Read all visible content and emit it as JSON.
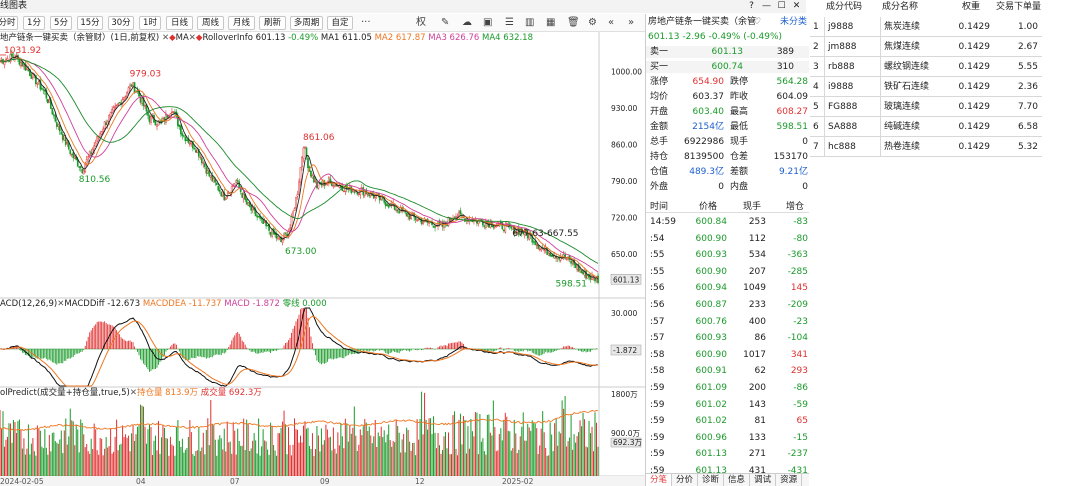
{
  "window": {
    "title": "线图表",
    "buttons": [
      "?",
      "—",
      "☐",
      "✕"
    ]
  },
  "toolbar": {
    "periods": [
      "分时",
      "1分",
      "5分",
      "15分",
      "30分",
      "1时",
      "日线",
      "周线",
      "月线",
      "刷新",
      "多周期",
      "自定"
    ],
    "more": "···",
    "right_label": "权"
  },
  "legend": {
    "main_name": "地产链条一键买卖（余管财）(1日,前复权)",
    "ma_marker": "MA",
    "rollover_marker": "RolloverInfo",
    "last_value": "601.13",
    "last_change": "-0.49%",
    "ma1": "MA1 611.05",
    "ma2": "MA2 617.87",
    "ma3": "MA3 626.76",
    "ma4": "MA4 632.18",
    "macd_name": "ACD(12,26,9)",
    "macd_diff": "MACDDiff -12.673",
    "macd_dea": "MACDDEA -11.737",
    "macd_val": "MACD -1.872",
    "macd_zero": "零线 0.000",
    "vol_name": "olPredict(成交量+持仓量,true,5)",
    "vol_hold": "持仓量 813.9万",
    "vol_amt": "成交量 692.3万"
  },
  "chart_data": {
    "type": "candlestick",
    "price_axis": [
      "1000.00",
      "930.00",
      "860.00",
      "790.00",
      "720.00",
      "650.00"
    ],
    "price_range": [
      569,
      1053
    ],
    "macd_axis": [
      "30.000",
      "-1.872"
    ],
    "vol_axis": [
      "1800万",
      "900.0万",
      "692.3万"
    ],
    "current_price_tag": "601.13",
    "date_labels": [
      "2024-02-05",
      "04",
      "07",
      "09",
      "12",
      "2025-02"
    ],
    "annotations": [
      {
        "text": "1031.92",
        "value": 1031.92
      },
      {
        "text": "979.03",
        "value": 979.03
      },
      {
        "text": "810.56",
        "value": 810.56
      },
      {
        "text": "861.06",
        "value": 861.06
      },
      {
        "text": "673.00",
        "value": 673.0
      },
      {
        "text": "677.63-667.55",
        "value": 672.6
      },
      {
        "text": "598.51",
        "value": 598.51
      }
    ],
    "price_keypoints": [
      [
        0,
        1020
      ],
      [
        10,
        1030
      ],
      [
        18,
        1005
      ],
      [
        30,
        960
      ],
      [
        38,
        900
      ],
      [
        48,
        840
      ],
      [
        55,
        812
      ],
      [
        60,
        840
      ],
      [
        70,
        900
      ],
      [
        80,
        940
      ],
      [
        88,
        975
      ],
      [
        92,
        960
      ],
      [
        100,
        910
      ],
      [
        108,
        900
      ],
      [
        115,
        930
      ],
      [
        122,
        880
      ],
      [
        132,
        850
      ],
      [
        140,
        800
      ],
      [
        150,
        760
      ],
      [
        158,
        790
      ],
      [
        165,
        745
      ],
      [
        175,
        710
      ],
      [
        182,
        690
      ],
      [
        188,
        673
      ],
      [
        194,
        700
      ],
      [
        199,
        770
      ],
      [
        203,
        861
      ],
      [
        207,
        810
      ],
      [
        212,
        780
      ],
      [
        220,
        790
      ],
      [
        232,
        775
      ],
      [
        244,
        770
      ],
      [
        256,
        752
      ],
      [
        266,
        735
      ],
      [
        276,
        720
      ],
      [
        286,
        710
      ],
      [
        296,
        703
      ],
      [
        304,
        725
      ],
      [
        310,
        720
      ],
      [
        318,
        714
      ],
      [
        326,
        710
      ],
      [
        334,
        705
      ],
      [
        342,
        698
      ],
      [
        350,
        692
      ],
      [
        356,
        680
      ],
      [
        362,
        660
      ],
      [
        370,
        650
      ],
      [
        378,
        642
      ],
      [
        384,
        630
      ],
      [
        390,
        612
      ],
      [
        396,
        604
      ],
      [
        400,
        601
      ]
    ]
  },
  "quote": {
    "title": "房地产链条一键买卖（余管",
    "tag": "未分类",
    "price_line": "601.13  -2.96  -0.49%  (-0.49%)",
    "ask_label": "卖一",
    "ask_price": "601.13",
    "ask_vol": "389",
    "bid_label": "买一",
    "bid_price": "600.74",
    "bid_vol": "310",
    "rows": [
      {
        "l1": "涨停",
        "v1": "654.90",
        "c1": "red",
        "l2": "跌停",
        "v2": "564.28",
        "c2": "green"
      },
      {
        "l1": "均价",
        "v1": "603.37",
        "c1": "normal",
        "l2": "昨收",
        "v2": "604.09",
        "c2": "normal"
      },
      {
        "l1": "开盘",
        "v1": "603.40",
        "c1": "green",
        "l2": "最高",
        "v2": "608.27",
        "c2": "red"
      },
      {
        "l1": "金额",
        "v1": "2154亿",
        "c1": "blue",
        "l2": "最低",
        "v2": "598.51",
        "c2": "green"
      },
      {
        "l1": "总手",
        "v1": "6922986",
        "c1": "normal",
        "l2": "现手",
        "v2": "0",
        "c2": "normal"
      },
      {
        "l1": "持仓",
        "v1": "8139500",
        "c1": "normal",
        "l2": "仓差",
        "v2": "153170",
        "c2": "normal"
      },
      {
        "l1": "仓值",
        "v1": "489.3亿",
        "c1": "blue",
        "l2": "差额",
        "v2": "9.21亿",
        "c2": "blue"
      },
      {
        "l1": "外盘",
        "v1": "0",
        "c1": "normal",
        "l2": "内盘",
        "v2": "0",
        "c2": "normal"
      }
    ],
    "tick_header": [
      "时间",
      "价格",
      "现手",
      "增仓"
    ],
    "ticks": [
      {
        "t": "14:59",
        "p": "600.84",
        "v": "253",
        "d": "-83"
      },
      {
        "t": ":54",
        "p": "600.90",
        "v": "112",
        "d": "-80"
      },
      {
        "t": ":55",
        "p": "600.93",
        "v": "534",
        "d": "-363"
      },
      {
        "t": ":55",
        "p": "600.90",
        "v": "207",
        "d": "-285"
      },
      {
        "t": ":56",
        "p": "600.94",
        "v": "1049",
        "d": "145"
      },
      {
        "t": ":56",
        "p": "600.87",
        "v": "233",
        "d": "-209"
      },
      {
        "t": ":57",
        "p": "600.76",
        "v": "400",
        "d": "-23"
      },
      {
        "t": ":57",
        "p": "600.93",
        "v": "86",
        "d": "-104"
      },
      {
        "t": ":58",
        "p": "600.90",
        "v": "1017",
        "d": "341"
      },
      {
        "t": ":58",
        "p": "600.91",
        "v": "62",
        "d": "293"
      },
      {
        "t": ":59",
        "p": "601.09",
        "v": "200",
        "d": "-86"
      },
      {
        "t": ":59",
        "p": "601.02",
        "v": "143",
        "d": "-59"
      },
      {
        "t": ":59",
        "p": "601.02",
        "v": "81",
        "d": "65"
      },
      {
        "t": ":59",
        "p": "600.96",
        "v": "133",
        "d": "-15"
      },
      {
        "t": ":59",
        "p": "601.13",
        "v": "271",
        "d": "-237"
      },
      {
        "t": ":59",
        "p": "601.13",
        "v": "431",
        "d": "-431"
      }
    ],
    "tabs": [
      "分笔",
      "分价",
      "诊断",
      "信息",
      "调试",
      "资源"
    ]
  },
  "components": {
    "headers": [
      "成分代码",
      "成分名称",
      "权重",
      "交易下单量"
    ],
    "rows": [
      {
        "idx": "1",
        "code": "j9888",
        "name": "焦炭连续",
        "w": "0.1429",
        "q": "1.00"
      },
      {
        "idx": "2",
        "code": "jm888",
        "name": "焦煤连续",
        "w": "0.1429",
        "q": "2.67"
      },
      {
        "idx": "3",
        "code": "rb888",
        "name": "螺纹钢连续",
        "w": "0.1429",
        "q": "5.55"
      },
      {
        "idx": "4",
        "code": "i9888",
        "name": "铁矿石连续",
        "w": "0.1429",
        "q": "2.36"
      },
      {
        "idx": "5",
        "code": "FG888",
        "name": "玻璃连续",
        "w": "0.1429",
        "q": "7.70"
      },
      {
        "idx": "6",
        "code": "SA888",
        "name": "纯碱连续",
        "w": "0.1429",
        "q": "6.58"
      },
      {
        "idx": "7",
        "code": "hc888",
        "name": "热卷连续",
        "w": "0.1429",
        "q": "5.32"
      }
    ]
  },
  "colors": {
    "up": "#e03030",
    "down": "#1a9a2a",
    "ma1": "#222222",
    "ma2": "#ee7722",
    "ma3": "#d0409a",
    "ma4": "#1a8a2a"
  }
}
